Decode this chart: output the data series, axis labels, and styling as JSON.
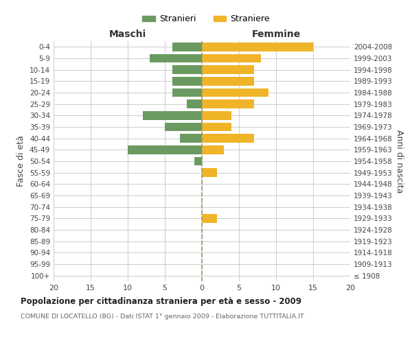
{
  "age_groups": [
    "100+",
    "95-99",
    "90-94",
    "85-89",
    "80-84",
    "75-79",
    "70-74",
    "65-69",
    "60-64",
    "55-59",
    "50-54",
    "45-49",
    "40-44",
    "35-39",
    "30-34",
    "25-29",
    "20-24",
    "15-19",
    "10-14",
    "5-9",
    "0-4"
  ],
  "birth_years": [
    "≤ 1908",
    "1909-1913",
    "1914-1918",
    "1919-1923",
    "1924-1928",
    "1929-1933",
    "1934-1938",
    "1939-1943",
    "1944-1948",
    "1949-1953",
    "1954-1958",
    "1959-1963",
    "1964-1968",
    "1969-1973",
    "1974-1978",
    "1979-1983",
    "1984-1988",
    "1989-1993",
    "1994-1998",
    "1999-2003",
    "2004-2008"
  ],
  "males": [
    0,
    0,
    0,
    0,
    0,
    0,
    0,
    0,
    0,
    0,
    1,
    10,
    3,
    5,
    8,
    2,
    4,
    4,
    4,
    7,
    4
  ],
  "females": [
    0,
    0,
    0,
    0,
    0,
    2,
    0,
    0,
    0,
    2,
    0,
    3,
    7,
    4,
    4,
    7,
    9,
    7,
    7,
    8,
    15
  ],
  "male_color": "#6a9a5f",
  "female_color": "#f0b429",
  "xlim": 20,
  "title": "Popolazione per cittadinanza straniera per età e sesso - 2009",
  "subtitle": "COMUNE DI LOCATELLO (BG) - Dati ISTAT 1° gennaio 2009 - Elaborazione TUTTITALIA.IT",
  "ylabel_left": "Fasce di età",
  "ylabel_right": "Anni di nascita",
  "legend_male": "Stranieri",
  "legend_female": "Straniere",
  "maschi_label": "Maschi",
  "femmine_label": "Femmine",
  "background_color": "#ffffff",
  "grid_color": "#cccccc",
  "bar_height": 0.75
}
